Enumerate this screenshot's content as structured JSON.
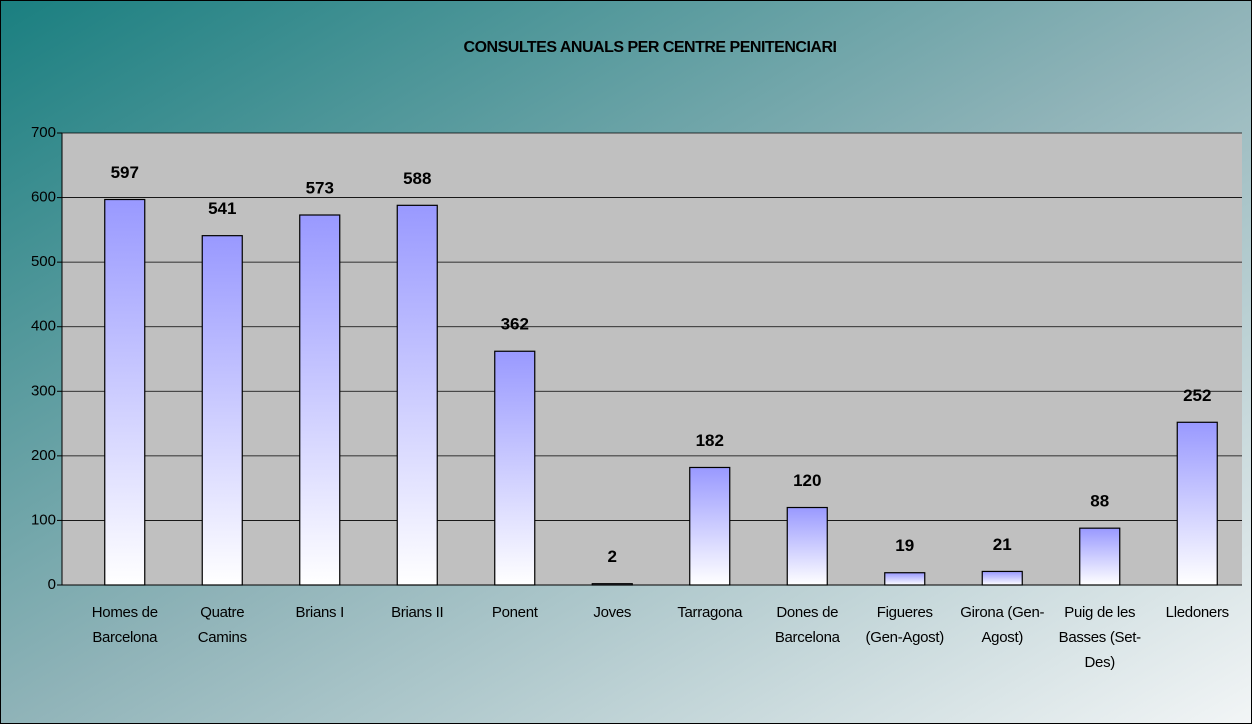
{
  "chart_data": {
    "type": "bar",
    "title": "CONSULTES ANUALS PER CENTRE PENITENCIARI",
    "categories": [
      "Homes de Barcelona",
      "Quatre Camins",
      "Brians I",
      "Brians II",
      "Ponent",
      "Joves",
      "Tarragona",
      "Dones de Barcelona",
      "Figueres (Gen-Agost)",
      "Girona (Gen-Agost)",
      "Puig de les Basses (Set-Des)",
      "Lledoners"
    ],
    "values": [
      597,
      541,
      573,
      588,
      362,
      2,
      182,
      120,
      19,
      21,
      88,
      252
    ],
    "color": "#9999ff",
    "ylim": [
      0,
      700
    ],
    "yticks": [
      0,
      100,
      200,
      300,
      400,
      500,
      600,
      700
    ],
    "grid": true
  }
}
